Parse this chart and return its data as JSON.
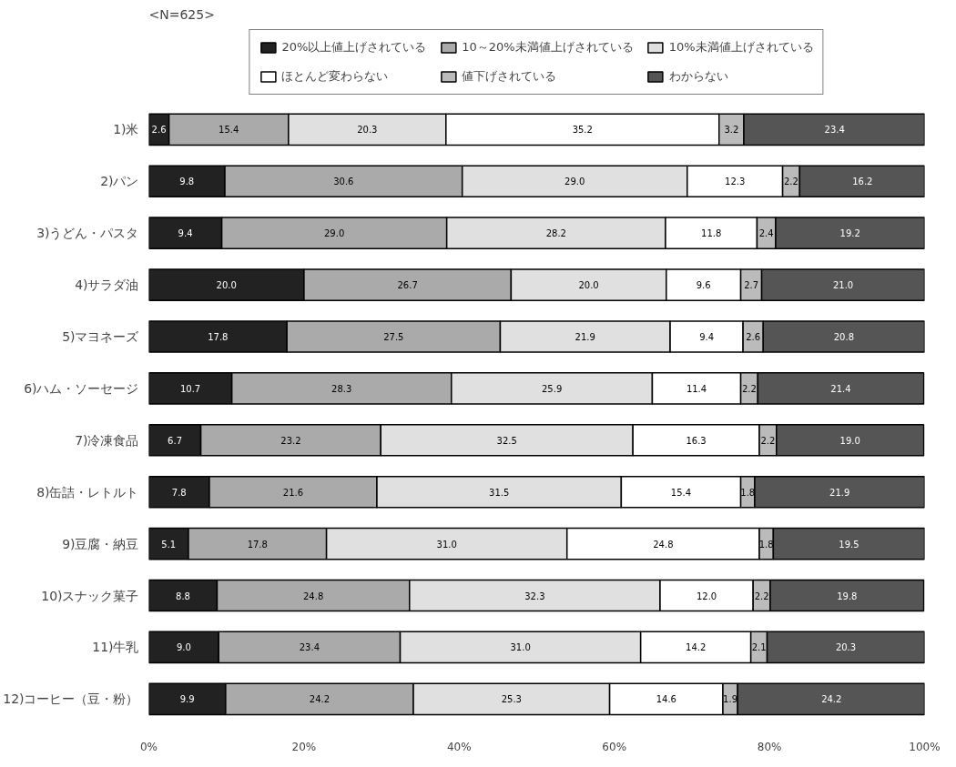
{
  "chart_data": {
    "type": "bar",
    "orientation": "horizontal",
    "stacked": true,
    "categories": [
      "1)米",
      "2)パン",
      "3)うどん・パスタ",
      "4)サラダ油",
      "5)マヨネーズ",
      "6)ハム・ソーセージ",
      "7)冷凍食品",
      "8)缶詰・レトルト",
      "9)豆腐・納豆",
      "10)スナック菓子",
      "11)牛乳",
      "12)コーヒー（豆・粉）"
    ],
    "series": [
      {
        "name": "20%以上値上げされている",
        "color": "#222222",
        "values": [
          2.6,
          9.8,
          9.4,
          20.0,
          17.8,
          10.7,
          6.7,
          7.8,
          5.1,
          8.8,
          9.0,
          9.9
        ],
        "value_labels": [
          "2.6",
          "9.8",
          "9.4",
          "20.0",
          "17.8",
          "10.7",
          "6.7",
          "7.8",
          "5.1",
          "8.8",
          "9.0",
          "9.9"
        ]
      },
      {
        "name": "10～20%未満値上げされている",
        "color": "#aaaaaa",
        "values": [
          15.4,
          30.6,
          29.0,
          26.7,
          27.5,
          28.3,
          23.2,
          21.6,
          17.8,
          24.8,
          23.4,
          24.2
        ],
        "value_labels": [
          "15.4",
          "30.6",
          "29.0",
          "26.7",
          "27.5",
          "28.3",
          "23.2",
          "21.6",
          "17.8",
          "24.8",
          "23.4",
          "24.2"
        ]
      },
      {
        "name": "10%未満値上げされている",
        "color": "#e0e0e0",
        "values": [
          20.3,
          29.0,
          28.2,
          20.0,
          21.9,
          25.9,
          32.5,
          31.5,
          31.0,
          32.3,
          31.0,
          25.3
        ],
        "value_labels": [
          "20.3",
          "29.0",
          "28.2",
          "20.0",
          "21.9",
          "25.9",
          "32.5",
          "31.5",
          "31.0",
          "32.3",
          "31.0",
          "25.3"
        ]
      },
      {
        "name": "ほとんど変わらない",
        "color": "#ffffff",
        "values": [
          35.2,
          12.3,
          11.8,
          9.6,
          9.4,
          11.4,
          16.3,
          15.4,
          24.8,
          12.0,
          14.2,
          14.6
        ],
        "value_labels": [
          "35.2",
          "12.3",
          "11.8",
          "9.6",
          "9.4",
          "11.4",
          "16.3",
          "15.4",
          "24.8",
          "12.0",
          "14.2",
          "14.6"
        ]
      },
      {
        "name": "値下げされている",
        "color": "#bbbbbb",
        "values": [
          3.2,
          2.2,
          2.4,
          2.7,
          2.6,
          2.2,
          2.2,
          1.8,
          1.8,
          2.2,
          2.1,
          1.9
        ],
        "value_labels": [
          "3.2",
          "2.2",
          "2.4",
          "2.7",
          "2.6",
          "2.2",
          "2.2",
          "1.8",
          "1.8",
          "2.2",
          "2.1",
          "1.9"
        ]
      },
      {
        "name": "わからない",
        "color": "#555555",
        "values": [
          23.4,
          16.2,
          19.2,
          21.0,
          20.8,
          21.4,
          19.0,
          21.9,
          19.5,
          19.8,
          20.3,
          24.2
        ],
        "value_labels": [
          "23.4",
          "16.2",
          "19.2",
          "21.0",
          "20.8",
          "21.4",
          "19.0",
          "21.9",
          "19.5",
          "19.8",
          "20.3",
          "24.2"
        ]
      }
    ],
    "xlim": [
      0,
      100
    ],
    "xticks": [
      {
        "value": 0,
        "label": "0%"
      },
      {
        "value": 20,
        "label": "20%"
      },
      {
        "value": 40,
        "label": "40%"
      },
      {
        "value": 60,
        "label": "60%"
      },
      {
        "value": 80,
        "label": "80%"
      },
      {
        "value": 100,
        "label": "100%"
      }
    ],
    "annotations": [
      "<N=625>"
    ],
    "legend": "top",
    "grid": false
  }
}
